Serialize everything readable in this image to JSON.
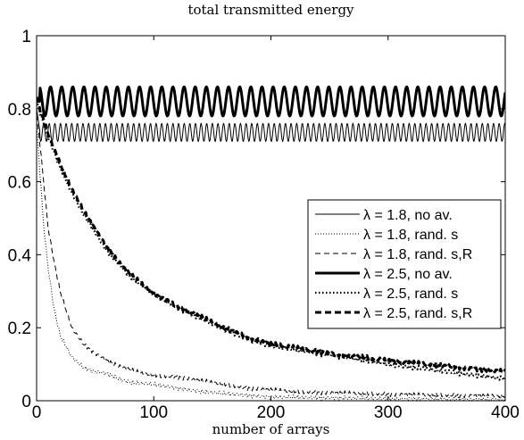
{
  "chart_data": {
    "type": "line",
    "title": "total transmitted energy",
    "xlabel": "number of arrays",
    "ylabel": "",
    "xlim": [
      0,
      400
    ],
    "ylim": [
      0,
      1
    ],
    "xticks": [
      0,
      100,
      200,
      300,
      400
    ],
    "yticks": [
      0,
      0.2,
      0.4,
      0.6,
      0.8,
      1
    ],
    "grid": false,
    "legend_position": "right",
    "series": [
      {
        "name": "λ = 1.8, no av.",
        "style": "solid-thin",
        "pattern": "oscillating",
        "period": 4.8,
        "mean": 0.735,
        "amplitude": 0.025,
        "x": [
          0,
          3,
          400
        ],
        "y": [
          0.8,
          0.735,
          0.735
        ]
      },
      {
        "name": "λ = 1.8, rand. s",
        "style": "dotted-thin",
        "x": [
          0,
          3,
          6,
          10,
          15,
          20,
          30,
          40,
          50,
          60,
          70,
          80,
          100,
          120,
          140,
          160,
          180,
          200,
          250,
          300,
          350,
          400
        ],
        "y": [
          0.75,
          0.62,
          0.48,
          0.36,
          0.25,
          0.18,
          0.12,
          0.09,
          0.08,
          0.075,
          0.06,
          0.05,
          0.045,
          0.035,
          0.025,
          0.02,
          0.015,
          0.01,
          0.008,
          0.005,
          0.004,
          0.003
        ]
      },
      {
        "name": "λ = 1.8, rand. s,R",
        "style": "dashed-thin",
        "x": [
          0,
          3,
          6,
          10,
          15,
          20,
          25,
          30,
          40,
          50,
          60,
          70,
          80,
          90,
          100,
          120,
          140,
          160,
          180,
          200,
          220,
          250,
          300,
          350,
          400
        ],
        "y": [
          0.78,
          0.7,
          0.6,
          0.47,
          0.38,
          0.3,
          0.25,
          0.2,
          0.155,
          0.13,
          0.11,
          0.095,
          0.085,
          0.075,
          0.07,
          0.065,
          0.055,
          0.045,
          0.035,
          0.03,
          0.025,
          0.022,
          0.018,
          0.015,
          0.013
        ]
      },
      {
        "name": "λ = 2.5, no av.",
        "style": "solid-thick",
        "pattern": "oscillating",
        "period": 9.5,
        "mean": 0.82,
        "amplitude": 0.04,
        "x": [
          0,
          400
        ],
        "y": [
          0.82,
          0.82
        ]
      },
      {
        "name": "λ = 2.5, rand. s",
        "style": "dotted-thick",
        "x": [
          0,
          5,
          10,
          20,
          30,
          40,
          50,
          60,
          70,
          80,
          90,
          100,
          120,
          140,
          160,
          180,
          200,
          220,
          250,
          300,
          350,
          400
        ],
        "y": [
          0.82,
          0.77,
          0.72,
          0.64,
          0.57,
          0.51,
          0.46,
          0.41,
          0.375,
          0.34,
          0.315,
          0.29,
          0.255,
          0.225,
          0.195,
          0.17,
          0.15,
          0.14,
          0.125,
          0.1,
          0.08,
          0.06
        ]
      },
      {
        "name": "λ = 2.5, rand. s,R",
        "style": "dashed-thick",
        "x": [
          0,
          5,
          10,
          20,
          30,
          40,
          50,
          60,
          70,
          80,
          90,
          100,
          120,
          140,
          160,
          180,
          200,
          220,
          250,
          300,
          350,
          400
        ],
        "y": [
          0.83,
          0.78,
          0.73,
          0.65,
          0.58,
          0.52,
          0.47,
          0.42,
          0.38,
          0.345,
          0.32,
          0.295,
          0.26,
          0.23,
          0.2,
          0.175,
          0.155,
          0.145,
          0.13,
          0.11,
          0.095,
          0.08
        ]
      }
    ]
  }
}
